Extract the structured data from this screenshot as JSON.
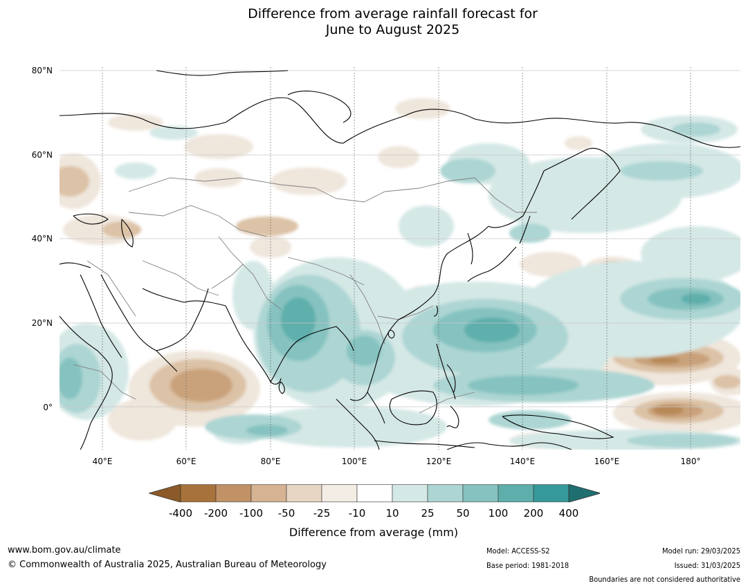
{
  "title": {
    "line1": "Difference from average rainfall forecast for",
    "line2": "June to August 2025"
  },
  "map": {
    "lat_labels": [
      "80°N",
      "60°N",
      "40°N",
      "20°N",
      "0°"
    ],
    "lon_labels": [
      "40°E",
      "60°E",
      "80°E",
      "100°E",
      "120°E",
      "140°E",
      "160°E",
      "180°"
    ],
    "extent": {
      "lon_min": 30,
      "lon_max": 192,
      "lat_min": -10,
      "lat_max": 81
    },
    "colors": {
      "land_border": "#000000",
      "country_border": "#808080",
      "gridline": "#c8c8c8",
      "meridian": "#606060"
    }
  },
  "colorbar": {
    "labels": [
      "-400",
      "-200",
      "-100",
      "-50",
      "-25",
      "-10",
      "10",
      "25",
      "50",
      "100",
      "200",
      "400"
    ],
    "colors": [
      "#8c5a28",
      "#a8723c",
      "#c19266",
      "#d6b393",
      "#e7d6c4",
      "#f3ede5",
      "#ffffff",
      "#d4e8e6",
      "#acd5d3",
      "#85c2c0",
      "#5eafac",
      "#35999a",
      "#1f6f70"
    ],
    "title": "Difference from average (mm)"
  },
  "footer": {
    "website": "www.bom.gov.au/climate",
    "copyright": "© Commonwealth of Australia 2025, Australian Bureau of Meteorology",
    "model": "Model: ACCESS-S2",
    "base_period": "Base period: 1981-2018",
    "model_run": "Model run: 29/03/2025",
    "issued": "Issued: 31/03/2025",
    "boundaries_note": "Boundaries are not considered authoritative"
  }
}
